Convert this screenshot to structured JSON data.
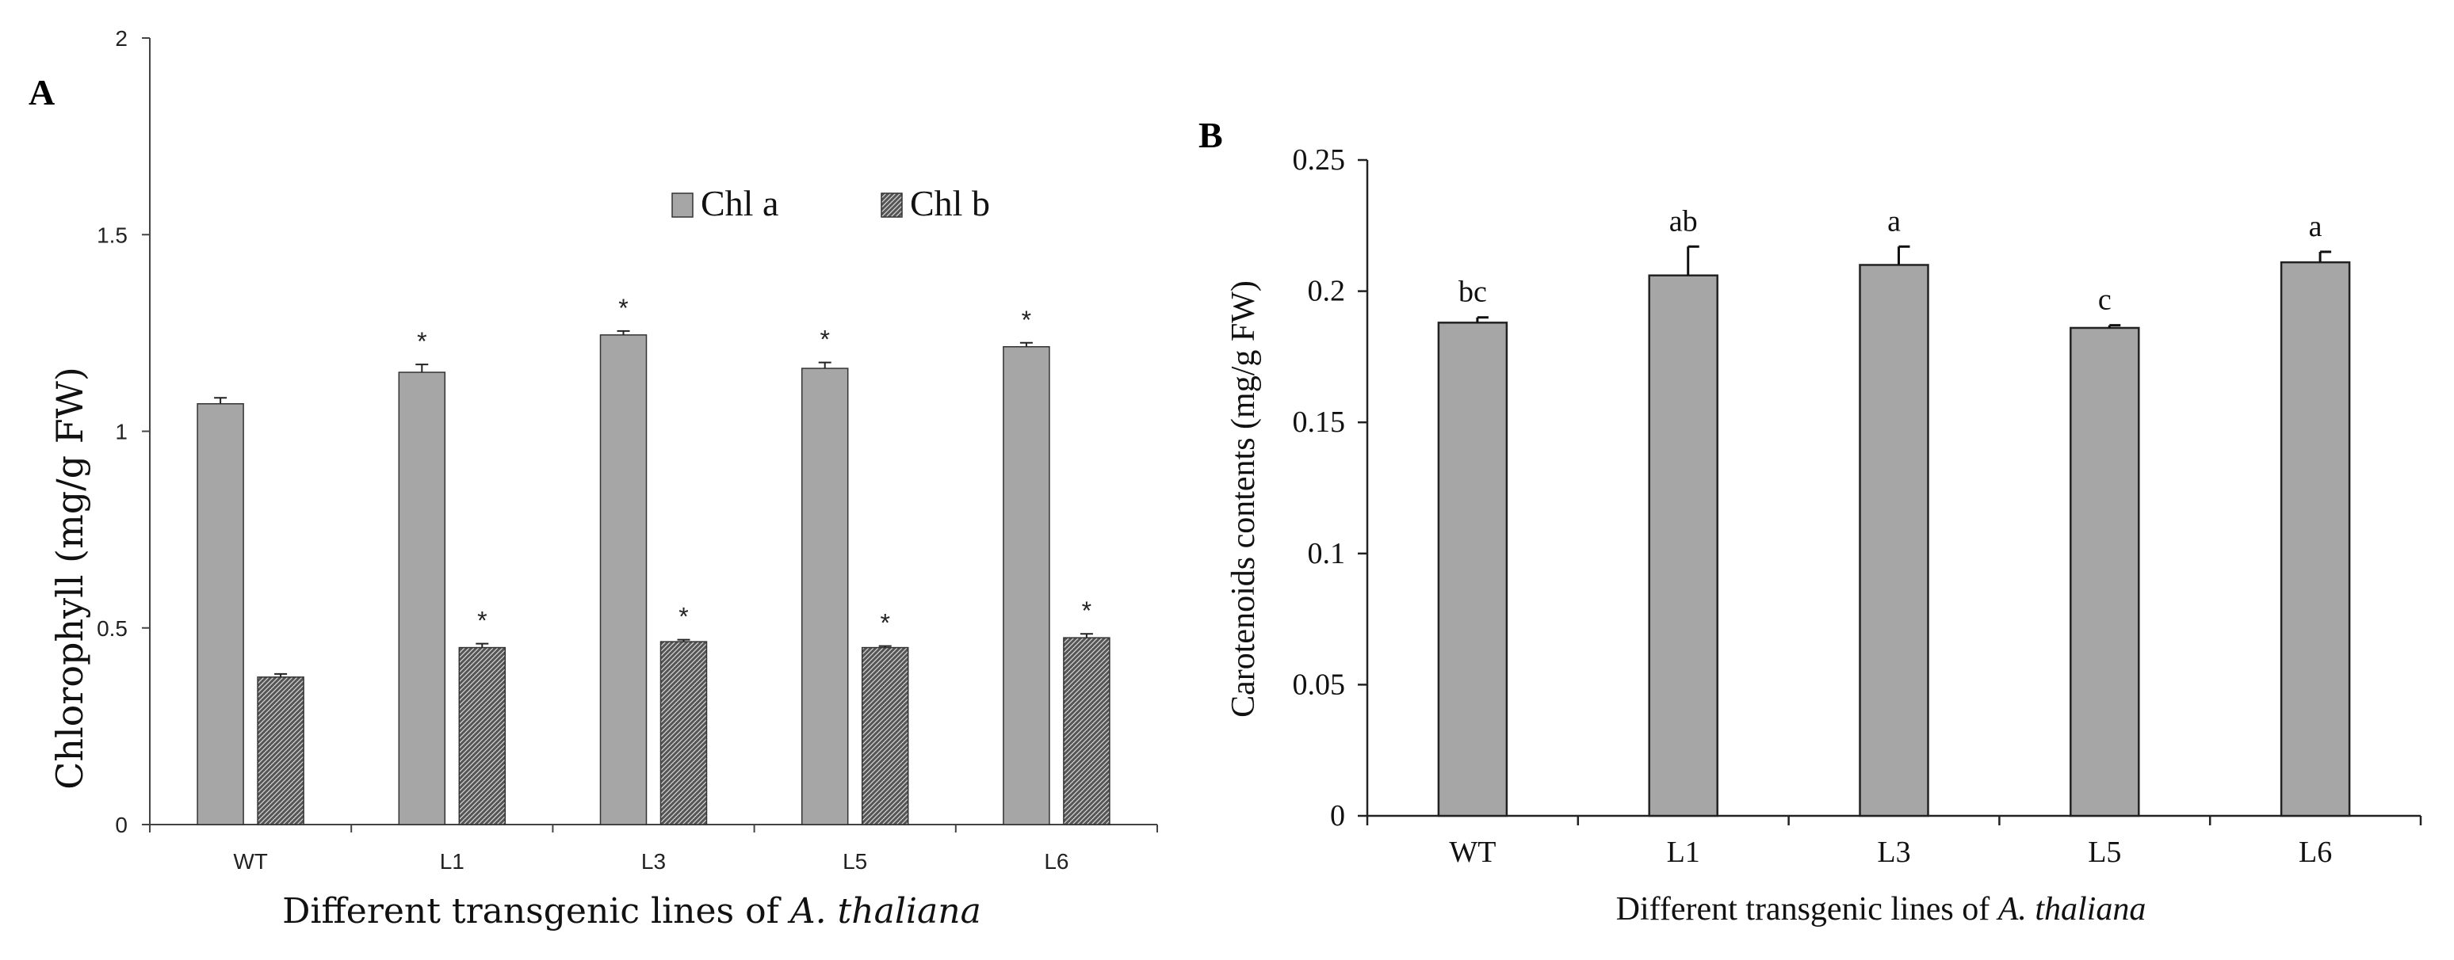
{
  "chart_data": [
    {
      "panel": "A",
      "type": "bar",
      "title": "",
      "ylabel": "Chlorophyll (mg/g FW)",
      "xlabel_prefix": "Different transgenic lines of ",
      "xlabel_italic": "A. thaliana",
      "ylim": [
        0,
        2
      ],
      "yticks": [
        "0",
        "0.5",
        "1",
        "1.5",
        "2"
      ],
      "categories": [
        "WT",
        "L1",
        "L3",
        "L5",
        "L6"
      ],
      "series": [
        {
          "name": "Chl a",
          "values": [
            1.07,
            1.15,
            1.245,
            1.16,
            1.215
          ],
          "errors": [
            0.015,
            0.02,
            0.01,
            0.015,
            0.01
          ],
          "annotations": [
            "",
            "*",
            "*",
            "*",
            "*"
          ],
          "color": "#a6a6a6"
        },
        {
          "name": "Chl b",
          "values": [
            0.375,
            0.45,
            0.465,
            0.45,
            0.475
          ],
          "errors": [
            0.008,
            0.01,
            0.005,
            0.004,
            0.01
          ],
          "annotations": [
            "",
            "*",
            "*",
            "*",
            "*"
          ],
          "color": "#555555"
        }
      ],
      "legend_position": "top-right",
      "grid": false
    },
    {
      "panel": "B",
      "type": "bar",
      "title": "",
      "ylabel": "Carotenoids contents (mg/g FW)",
      "xlabel_prefix": "Different transgenic lines of ",
      "xlabel_italic": "A. thaliana",
      "ylim": [
        0,
        0.25
      ],
      "yticks": [
        "0",
        "0.05",
        "0.1",
        "0.15",
        "0.2",
        "0.25"
      ],
      "categories": [
        "WT",
        "L1",
        "L3",
        "L5",
        "L6"
      ],
      "series": [
        {
          "name": "Carotenoids",
          "values": [
            0.188,
            0.206,
            0.21,
            0.186,
            0.211
          ],
          "errors": [
            0.002,
            0.011,
            0.007,
            0.001,
            0.004
          ],
          "annotations": [
            "bc",
            "ab",
            "a",
            "c",
            "a"
          ],
          "color": "#a6a6a6"
        }
      ],
      "grid": false
    }
  ]
}
